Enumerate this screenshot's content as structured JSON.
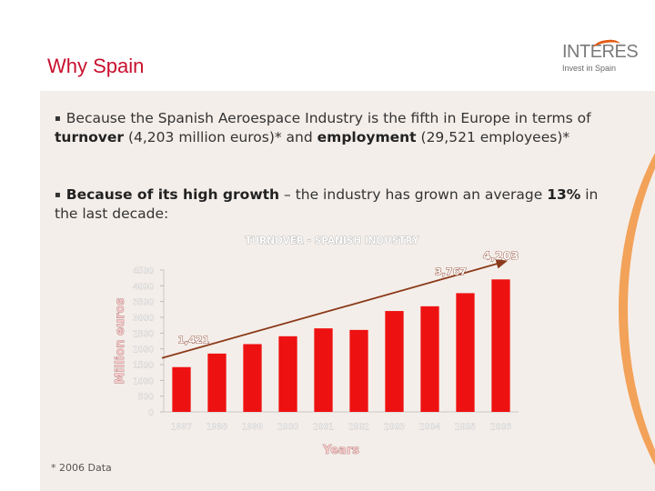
{
  "slide": {
    "title": "Why Spain",
    "logo_text": "INTERES",
    "logo_subtitle": "Invest in Spain",
    "footnote": "* 2006 Data",
    "accent_color": "#c8102e",
    "bar_color": "#ee1111",
    "trend_color": "#8b3a1a"
  },
  "bullets": [
    {
      "mark": "▪",
      "p1": "Because the Spanish Aeroespace Industry is the fifth in Europe in terms of ",
      "b1": "turnover",
      "p2": " (4,203 million euros)* and ",
      "b2": "employment",
      "p3": " (29,521 employees)*"
    },
    {
      "mark": "▪",
      "b1": "Because of its high growth",
      "p1": " – the industry has grown an average ",
      "b2": "13%",
      "p2": " in the last decade:"
    }
  ],
  "chart_data": {
    "type": "bar",
    "title": "TURNOVER - SPANISH INDUSTRY",
    "xlabel": "Years",
    "ylabel": "Million euros",
    "ylim": [
      0,
      4500
    ],
    "yticks": [
      0,
      500,
      1000,
      1500,
      2000,
      2500,
      3000,
      3500,
      4000,
      4500
    ],
    "categories": [
      "1997",
      "1998",
      "1999",
      "2000",
      "2001",
      "2002",
      "2003",
      "2004",
      "2005",
      "2006"
    ],
    "values": [
      1421,
      1850,
      2150,
      2400,
      2650,
      2600,
      3200,
      3350,
      3767,
      4203
    ],
    "annotations": [
      {
        "category": "1997",
        "label": "1,421"
      },
      {
        "category": "2005",
        "label": "3,767"
      },
      {
        "category": "2006",
        "label": "4,203"
      }
    ],
    "trendline": {
      "from_category": "1997",
      "to_category": "2006"
    }
  }
}
